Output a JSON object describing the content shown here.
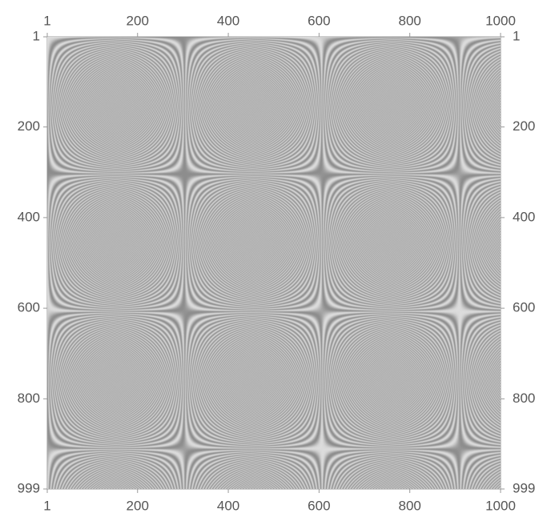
{
  "chart_data": {
    "type": "heatmap",
    "colormap": "grayscale",
    "x_ticks": [
      1,
      200,
      400,
      600,
      800,
      1000
    ],
    "y_ticks": [
      1,
      200,
      400,
      600,
      800,
      999
    ],
    "xlim": [
      1,
      1000
    ],
    "ylim": [
      1,
      999
    ],
    "y_axis_direction": "top-to-bottom",
    "tick_labels_on": [
      "top",
      "bottom",
      "left",
      "right"
    ],
    "grid": false,
    "values": "gray intensity varying with column and row index; bright bands converge at the top-left origin and fan out toward the right and bottom"
  }
}
